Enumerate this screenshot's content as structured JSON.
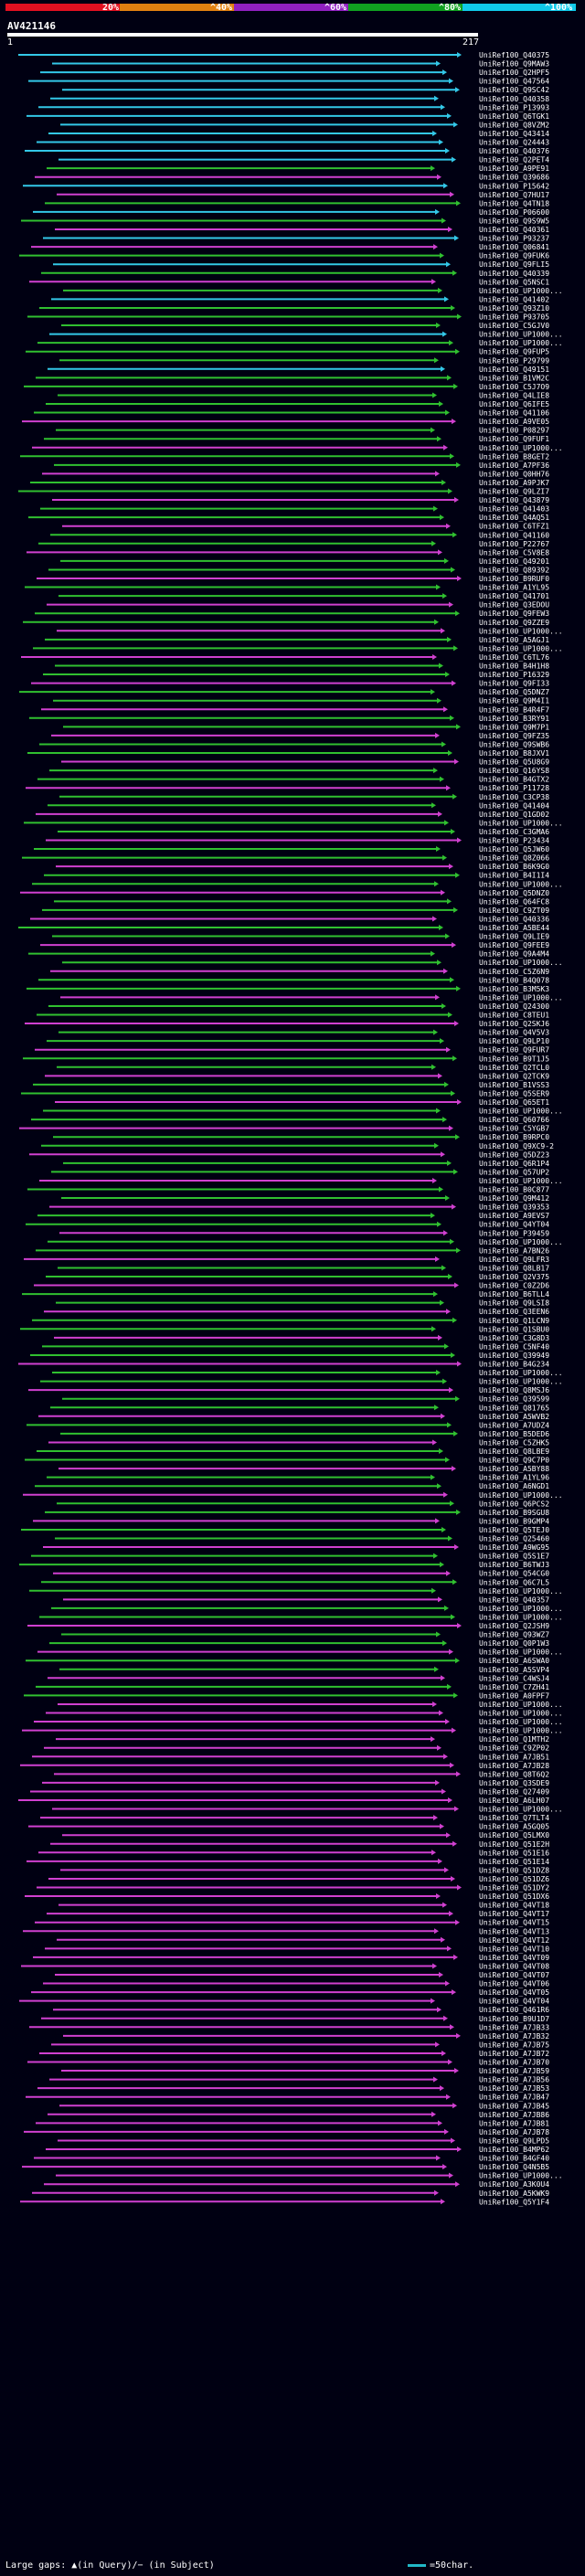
{
  "legend": {
    "labels": [
      "20%",
      "^40%",
      "^60%",
      "^80%",
      "^100%"
    ],
    "colors": [
      "#e01020",
      "#e08010",
      "#9020c0",
      "#10a020",
      "#10c8e8"
    ]
  },
  "query": {
    "id": "AV421146",
    "start": "1",
    "end": "217"
  },
  "colors": {
    "cyan": "#33c8e8",
    "green": "#30c030",
    "magenta": "#d040d0",
    "purple": "#9020b0"
  },
  "hits": [
    "UniRef100_Q40375",
    "UniRef100_Q9MAW3",
    "UniRef100_Q2HPF5",
    "UniRef100_Q47564",
    "UniRef100_Q9SC42",
    "UniRef100_Q40358",
    "UniRef100_P13993",
    "UniRef100_Q6TGK1",
    "UniRef100_Q8VZM2",
    "UniRef100_Q43414",
    "UniRef100_Q24443",
    "UniRef100_Q40376",
    "UniRef100_Q2PET4",
    "UniRef100_A9PE91",
    "UniRef100_Q39686",
    "UniRef100_P15642",
    "UniRef100_Q7HU17",
    "UniRef100_Q4TN18",
    "UniRef100_P06600",
    "UniRef100_Q9S9W5",
    "UniRef100_Q40361",
    "UniRef100_P93237",
    "UniRef100_Q06841",
    "UniRef100_Q9FUK6",
    "UniRef100_Q9FLI5",
    "UniRef100_Q40339",
    "UniRef100_Q5NSC1",
    "UniRef100_UP1000...",
    "UniRef100_Q41402",
    "UniRef100_Q93Z10",
    "UniRef100_P93705",
    "UniRef100_C5GJV0",
    "UniRef100_UP1000...",
    "UniRef100_UP1000...",
    "UniRef100_Q9FUP5",
    "UniRef100_P29799",
    "UniRef100_Q49151",
    "UniRef100_B1VM2C",
    "UniRef100_C5J7O9",
    "UniRef100_Q4LIE8",
    "UniRef100_Q6IFE5",
    "UniRef100_Q41106",
    "UniRef100_A9VE05",
    "UniRef100_P08297",
    "UniRef100_Q9FUF1",
    "UniRef100_UP1000...",
    "UniRef100_B8GET2",
    "UniRef100_A7PF36",
    "UniRef100_Q0HH76",
    "UniRef100_A9PJK7",
    "UniRef100_Q9LZI7",
    "UniRef100_Q43879",
    "UniRef100_Q41403",
    "UniRef100_Q4AQ51",
    "UniRef100_C6TFZ1",
    "UniRef100_Q41160",
    "UniRef100_P22767",
    "UniRef100_C5V8E8",
    "UniRef100_Q49201",
    "UniRef100_Q89392",
    "UniRef100_B9RUF0",
    "UniRef100_A1YL95",
    "UniRef100_Q41701",
    "UniRef100_Q3EDOU",
    "UniRef100_Q9FEW3",
    "UniRef100_Q9ZZE9",
    "UniRef100_UP1000...",
    "UniRef100_A5AGJ1",
    "UniRef100_UP1000...",
    "UniRef100_C6TL76",
    "UniRef100_B4H1H8",
    "UniRef100_P16329",
    "UniRef100_Q9FI33",
    "UniRef100_Q5DNZ7",
    "UniRef100_Q9M4I1",
    "UniRef100_B4R4F7",
    "UniRef100_B3RY91",
    "UniRef100_Q9M7P1",
    "UniRef100_Q9FZ35",
    "UniRef100_Q9SWB6",
    "UniRef100_B8JXV1",
    "UniRef100_Q5U8G9",
    "UniRef100_Q16YS8",
    "UniRef100_B4GTX2",
    "UniRef100_P11728",
    "UniRef100_C3CP38",
    "UniRef100_Q41404",
    "UniRef100_Q1GD02",
    "UniRef100_UP1000...",
    "UniRef100_C3GMA6",
    "UniRef100_P23434",
    "UniRef100_Q5JW60",
    "UniRef100_Q8Z066",
    "UniRef100_B6K9G0",
    "UniRef100_B4I1I4",
    "UniRef100_UP1000...",
    "UniRef100_Q5DNZ0",
    "UniRef100_Q64FC8",
    "UniRef100_C9ZT09",
    "UniRef100_Q40336",
    "UniRef100_A5BE44",
    "UniRef100_Q9LIE9",
    "UniRef100_Q9FEE9",
    "UniRef100_Q9A4M4",
    "UniRef100_UP1000...",
    "UniRef100_C5Z6N9",
    "UniRef100_B4Q078",
    "UniRef100_B3M5K3",
    "UniRef100_UP1000...",
    "UniRef100_Q24300",
    "UniRef100_C8TEU1",
    "UniRef100_Q2SKJ6",
    "UniRef100_Q4V5V3",
    "UniRef100_Q9LP10",
    "UniRef100_Q9FUR7",
    "UniRef100_B9T1J5",
    "UniRef100_Q2TCL0",
    "UniRef100_Q2TCK9",
    "UniRef100_B1VSS3",
    "UniRef100_Q5SER9",
    "UniRef100_Q65ET1",
    "UniRef100_UP1000...",
    "UniRef100_Q60766",
    "UniRef100_C5YGB7",
    "UniRef100_B9RPC0",
    "UniRef100_Q9XC9-2",
    "UniRef100_Q5DZ23",
    "UniRef100_Q6R1P4",
    "UniRef100_Q57UP2",
    "UniRef100_UP1000...",
    "UniRef100_B0C877",
    "UniRef100_Q9M412",
    "UniRef100_Q39353",
    "UniRef100_A9EVS7",
    "UniRef100_Q4YT04",
    "UniRef100_P39459",
    "UniRef100_UP1000...",
    "UniRef100_A7BN26",
    "UniRef100_Q9LFR3",
    "UniRef100_Q8LB17",
    "UniRef100_Q2V375",
    "UniRef100_C0Z2D6",
    "UniRef100_B6TLL4",
    "UniRef100_Q9LSI8",
    "UniRef100_Q3EEN6",
    "UniRef100_Q1LCN9",
    "UniRef100_Q1SBU0",
    "UniRef100_C3G8D3",
    "UniRef100_C5NF40",
    "UniRef100_Q39949",
    "UniRef100_B4G234",
    "UniRef100_UP1000...",
    "UniRef100_UP1000...",
    "UniRef100_Q8MSJ6",
    "UniRef100_Q39599",
    "UniRef100_Q81765",
    "UniRef100_A5WVB2",
    "UniRef100_A7UDZ4",
    "UniRef100_B5DED6",
    "UniRef100_C5ZHK5",
    "UniRef100_Q8LBE9",
    "UniRef100_Q9C7P0",
    "UniRef100_A5BY88",
    "UniRef100_A1YL96",
    "UniRef100_A6NGD1",
    "UniRef100_UP1000...",
    "UniRef100_Q6PCS2",
    "UniRef100_B9SGU8",
    "UniRef100_B9GMP4",
    "UniRef100_Q5TEJ0",
    "UniRef100_Q25460",
    "UniRef100_A9WG95",
    "UniRef100_Q5S1E7",
    "UniRef100_B6TWJ3",
    "UniRef100_Q54CG0",
    "UniRef100_Q6C7L5",
    "UniRef100_UP1000...",
    "UniRef100_Q40357",
    "UniRef100_UP1000...",
    "UniRef100_UP1000...",
    "UniRef100_Q2JSH9",
    "UniRef100_Q93WZ7",
    "UniRef100_Q0P1W3",
    "UniRef100_UP1000...",
    "UniRef100_A6SWA0",
    "UniRef100_A5SVP4",
    "UniRef100_C4WSJ4",
    "UniRef100_C7ZH41",
    "UniRef100_A0FPF7",
    "UniRef100_UP1000...",
    "UniRef100_UP1000...",
    "UniRef100_UP1000...",
    "UniRef100_UP1000...",
    "UniRef100_Q1MTH2",
    "UniRef100_C9ZP02",
    "UniRef100_A7JB51",
    "UniRef100_A7JB28",
    "UniRef100_Q8T6Q2",
    "UniRef100_Q3SDE9",
    "UniRef100_Q27409",
    "UniRef100_A6LH07",
    "UniRef100_UP1000...",
    "UniRef100_Q7TLT4",
    "UniRef100_A5GQ05",
    "UniRef100_Q5LMX0",
    "UniRef100_Q51E2H",
    "UniRef100_Q51E16",
    "UniRef100_Q51E14",
    "UniRef100_Q51DZ8",
    "UniRef100_Q51DZ6",
    "UniRef100_Q51DY2",
    "UniRef100_Q51DX6",
    "UniRef100_Q4VT18",
    "UniRef100_Q4VT17",
    "UniRef100_Q4VT15",
    "UniRef100_Q4VT13",
    "UniRef100_Q4VT12",
    "UniRef100_Q4VT10",
    "UniRef100_Q4VT09",
    "UniRef100_Q4VT08",
    "UniRef100_Q4VT07",
    "UniRef100_Q4VT06",
    "UniRef100_Q4VT05",
    "UniRef100_Q4VT04",
    "UniRef100_Q461R6",
    "UniRef100_B9U1D7",
    "UniRef100_A7JB33",
    "UniRef100_A7JB32",
    "UniRef100_A7JB75",
    "UniRef100_A7JB72",
    "UniRef100_A7JB70",
    "UniRef100_A7JB59",
    "UniRef100_A7JB56",
    "UniRef100_A7JB53",
    "UniRef100_A7JB47",
    "UniRef100_A7JB45",
    "UniRef100_A7JB86",
    "UniRef100_A7JB81",
    "UniRef100_A7JB78",
    "UniRef100_Q9LPD5",
    "UniRef100_B4MP62",
    "UniRef100_B4GF40",
    "UniRef100_Q4N5B5",
    "UniRef100_UP1000...",
    "UniRef100_A3K0U4",
    "UniRef100_A5KWK9",
    "UniRef100_Q5Y1F4"
  ],
  "footer": {
    "gaps_text": "Large gaps: ▲(in Query)/− (in Subject)",
    "scale_text": "=50char."
  }
}
